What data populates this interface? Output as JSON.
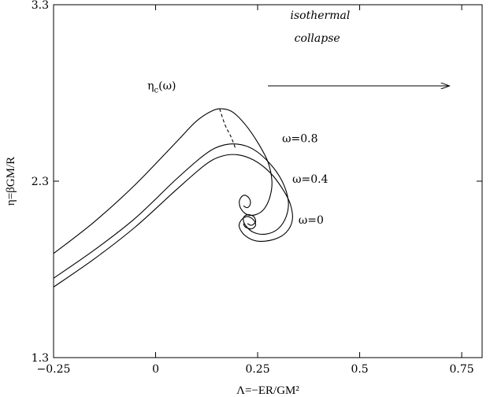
{
  "chart_data": {
    "type": "line",
    "title": "",
    "xlabel": "Λ=−ER/GM²",
    "ylabel": "η=βGM/R",
    "xlim": [
      -0.25,
      0.8
    ],
    "ylim": [
      1.3,
      3.3
    ],
    "x_ticks": [
      -0.25,
      0,
      0.25,
      0.5,
      0.75
    ],
    "x_tick_labels": [
      "−0.25",
      "0",
      "0.25",
      "0.5",
      "0.75"
    ],
    "y_ticks": [
      1.3,
      2.3,
      3.3
    ],
    "y_tick_labels": [
      "1.3",
      "2.3",
      "3.3"
    ],
    "grid": false,
    "series": [
      {
        "name": "ω=0",
        "points": [
          [
            -0.25,
            1.7
          ],
          [
            -0.15,
            1.86
          ],
          [
            -0.05,
            2.04
          ],
          [
            0.05,
            2.25
          ],
          [
            0.12,
            2.39
          ],
          [
            0.16,
            2.44
          ],
          [
            0.2,
            2.45
          ],
          [
            0.24,
            2.42
          ],
          [
            0.28,
            2.35
          ],
          [
            0.31,
            2.26
          ],
          [
            0.33,
            2.17
          ],
          [
            0.335,
            2.08
          ],
          [
            0.32,
            2.01
          ],
          [
            0.29,
            1.97
          ],
          [
            0.25,
            1.96
          ],
          [
            0.22,
            1.99
          ],
          [
            0.205,
            2.04
          ],
          [
            0.21,
            2.08
          ],
          [
            0.225,
            2.1
          ],
          [
            0.24,
            2.08
          ],
          [
            0.245,
            2.05
          ],
          [
            0.235,
            2.03
          ],
          [
            0.22,
            2.04
          ],
          [
            0.215,
            2.06
          ]
        ]
      },
      {
        "name": "ω=0.4",
        "points": [
          [
            -0.25,
            1.75
          ],
          [
            -0.15,
            1.91
          ],
          [
            -0.05,
            2.09
          ],
          [
            0.05,
            2.31
          ],
          [
            0.12,
            2.45
          ],
          [
            0.16,
            2.5
          ],
          [
            0.2,
            2.51
          ],
          [
            0.24,
            2.48
          ],
          [
            0.28,
            2.4
          ],
          [
            0.31,
            2.3
          ],
          [
            0.325,
            2.19
          ],
          [
            0.32,
            2.1
          ],
          [
            0.3,
            2.03
          ],
          [
            0.27,
            2.0
          ],
          [
            0.24,
            2.01
          ],
          [
            0.22,
            2.05
          ],
          [
            0.215,
            2.09
          ],
          [
            0.225,
            2.11
          ],
          [
            0.24,
            2.1
          ],
          [
            0.245,
            2.07
          ],
          [
            0.235,
            2.05
          ],
          [
            0.225,
            2.06
          ]
        ]
      },
      {
        "name": "ω=0.8",
        "points": [
          [
            -0.25,
            1.89
          ],
          [
            -0.15,
            2.07
          ],
          [
            -0.05,
            2.28
          ],
          [
            0.05,
            2.52
          ],
          [
            0.1,
            2.64
          ],
          [
            0.14,
            2.7
          ],
          [
            0.165,
            2.71
          ],
          [
            0.19,
            2.69
          ],
          [
            0.22,
            2.62
          ],
          [
            0.25,
            2.52
          ],
          [
            0.275,
            2.41
          ],
          [
            0.285,
            2.3
          ],
          [
            0.28,
            2.21
          ],
          [
            0.265,
            2.14
          ],
          [
            0.245,
            2.11
          ],
          [
            0.225,
            2.11
          ],
          [
            0.21,
            2.14
          ],
          [
            0.205,
            2.18
          ],
          [
            0.21,
            2.21
          ],
          [
            0.22,
            2.22
          ],
          [
            0.23,
            2.2
          ],
          [
            0.232,
            2.17
          ],
          [
            0.225,
            2.15
          ],
          [
            0.215,
            2.16
          ]
        ]
      }
    ],
    "dashed_curve": {
      "name": "ηc(ω)",
      "points": [
        [
          0.157,
          2.71
        ],
        [
          0.17,
          2.62
        ],
        [
          0.185,
          2.55
        ],
        [
          0.195,
          2.49
        ]
      ]
    },
    "annotations": [
      {
        "text": "ω=0.8",
        "x": 0.31,
        "y": 2.52
      },
      {
        "text": "ω=0.4",
        "x": 0.335,
        "y": 2.29
      },
      {
        "text": "ω=0",
        "x": 0.35,
        "y": 2.06
      },
      {
        "text_main": "η",
        "text_sub": "c",
        "text_tail": "(ω)",
        "x": -0.02,
        "y": 2.82
      },
      {
        "text": "isothermal",
        "x": 0.33,
        "y": 3.22,
        "italic": true
      },
      {
        "text": "collapse",
        "x": 0.34,
        "y": 3.09,
        "italic": true
      }
    ],
    "arrow": {
      "x1": 0.275,
      "y1": 2.84,
      "x2": 0.72,
      "y2": 2.84
    }
  }
}
